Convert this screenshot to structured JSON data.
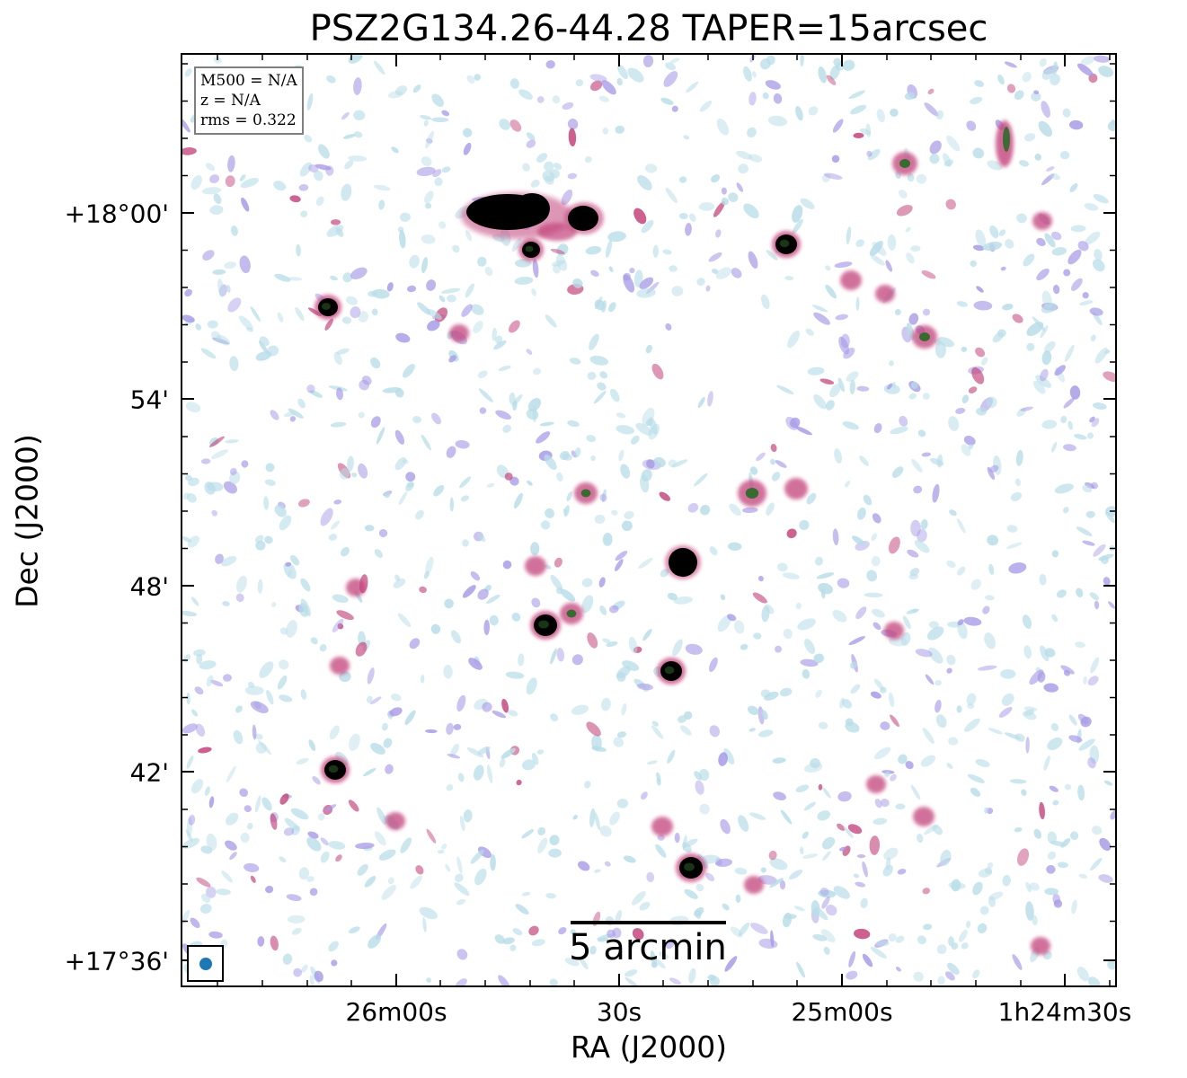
{
  "title": "PSZ2G134.26-44.28 TAPER=15arcsec",
  "axes": {
    "xlabel": "RA (J2000)",
    "ylabel": "Dec (J2000)",
    "x_ticks": [
      "26m00s",
      "30s",
      "25m00s",
      "1h24m30s"
    ],
    "y_ticks": [
      "+18°00'",
      "54'",
      "48'",
      "42'",
      "+17°36'"
    ]
  },
  "infobox": {
    "mass": "M500 = N/A",
    "redshift": "z = N/A",
    "rms": "rms = 0.322"
  },
  "scalebar": {
    "label": "5 arcmin"
  },
  "beam": {
    "color": "#1f77b4"
  },
  "colors": {
    "low": "#b9dde8",
    "mid": "#a79ae6",
    "high": "#c2437a",
    "peak": "#000000",
    "green": "#2f6a2a"
  }
}
